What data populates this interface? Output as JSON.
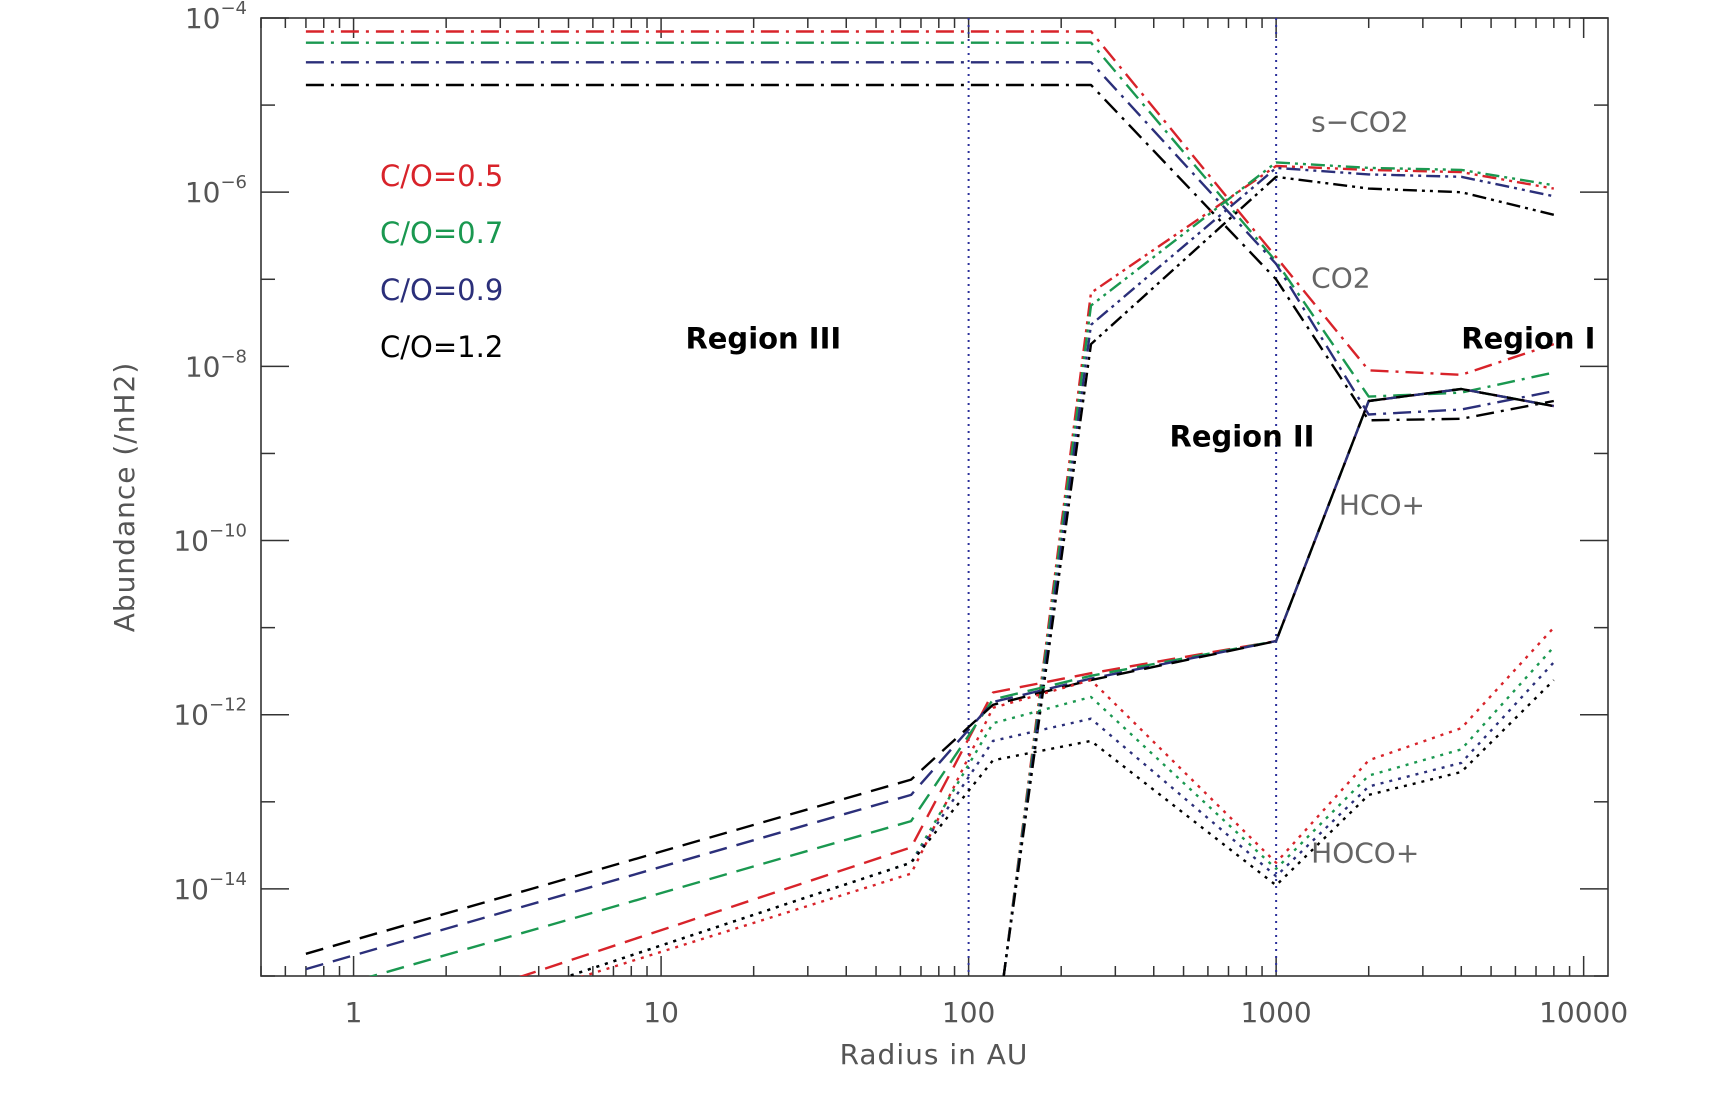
{
  "chart_data": {
    "type": "line",
    "xlabel": "Radius in AU",
    "ylabel": "Abundance (/nH2)",
    "xscale": "log",
    "yscale": "log",
    "xlim": [
      0.5,
      12000
    ],
    "ylim": [
      1e-15,
      0.0001
    ],
    "grid": false,
    "xticks": [
      {
        "value": 1,
        "label": "1"
      },
      {
        "value": 10,
        "label": "10"
      },
      {
        "value": 100,
        "label": "100"
      },
      {
        "value": 1000,
        "label": "1000"
      },
      {
        "value": 10000,
        "label": "10000"
      }
    ],
    "yticks": [
      {
        "value": 1e-14,
        "base": "10",
        "exp": "−14"
      },
      {
        "value": 1e-12,
        "base": "10",
        "exp": "−12"
      },
      {
        "value": 1e-10,
        "base": "10",
        "exp": "−10"
      },
      {
        "value": 1e-08,
        "base": "10",
        "exp": "−8"
      },
      {
        "value": 1e-06,
        "base": "10",
        "exp": "−6"
      },
      {
        "value": 0.0001,
        "base": "10",
        "exp": "−4"
      }
    ],
    "vlines": [
      100,
      1000
    ],
    "legend": {
      "placement": "upper-left",
      "entries": [
        {
          "label": "C/O=0.5",
          "color": "#d8232a"
        },
        {
          "label": "C/O=0.7",
          "color": "#1a9850"
        },
        {
          "label": "C/O=0.9",
          "color": "#2b2f7a"
        },
        {
          "label": "C/O=1.2",
          "color": "#000000"
        }
      ]
    },
    "annotations": [
      {
        "text": "s−CO2",
        "x": 1300,
        "y": 5e-06
      },
      {
        "text": "CO2",
        "x": 1300,
        "y": 8e-08
      },
      {
        "text": "HCO+",
        "x": 1600,
        "y": 2e-10
      },
      {
        "text": "HOCO+",
        "x": 1300,
        "y": 2e-14
      }
    ],
    "regions": [
      {
        "text": "Region III",
        "x": 12,
        "y": 1.6e-08
      },
      {
        "text": "Region II",
        "x": 450,
        "y": 1.2e-09
      },
      {
        "text": "Region I",
        "x": 4000,
        "y": 1.6e-08
      }
    ],
    "series": [
      {
        "name": "s-CO2",
        "co": "C/O=0.5",
        "style": "dashdot",
        "x": [
          0.7,
          250,
          1000,
          2000,
          4000,
          8000
        ],
        "y": [
          7e-05,
          7e-05,
          1.8e-07,
          9e-09,
          8e-09,
          1.8e-08
        ]
      },
      {
        "name": "s-CO2",
        "co": "C/O=0.7",
        "style": "dashdot",
        "x": [
          0.7,
          250,
          1000,
          2000,
          4000,
          8000
        ],
        "y": [
          5.2e-05,
          5.2e-05,
          1.6e-07,
          4.5e-09,
          5e-09,
          8.5e-09
        ]
      },
      {
        "name": "s-CO2",
        "co": "C/O=0.9",
        "style": "dashdot",
        "x": [
          0.7,
          250,
          1000,
          2000,
          4000,
          8000
        ],
        "y": [
          3.1e-05,
          3.1e-05,
          1.5e-07,
          2.8e-09,
          3.2e-09,
          5.2e-09
        ]
      },
      {
        "name": "s-CO2",
        "co": "C/O=1.2",
        "style": "dashdot",
        "x": [
          0.7,
          250,
          1000,
          2000,
          4000,
          8000
        ],
        "y": [
          1.7e-05,
          1.7e-05,
          1e-07,
          2.4e-09,
          2.5e-09,
          4e-09
        ]
      },
      {
        "name": "CO2",
        "co": "C/O=0.5",
        "style": "dashdotdot",
        "x": [
          130,
          250,
          1000,
          2000,
          4000,
          8000
        ],
        "y": [
          1e-15,
          7e-08,
          2e-06,
          1.8e-06,
          1.7e-06,
          1.1e-06
        ]
      },
      {
        "name": "CO2",
        "co": "C/O=0.7",
        "style": "dashdotdot",
        "x": [
          130,
          250,
          1000,
          2000,
          4000,
          8000
        ],
        "y": [
          1e-15,
          5e-08,
          2.2e-06,
          1.9e-06,
          1.8e-06,
          1.2e-06
        ]
      },
      {
        "name": "CO2",
        "co": "C/O=0.9",
        "style": "dashdotdot",
        "x": [
          130,
          250,
          1000,
          2000,
          4000,
          8000
        ],
        "y": [
          1e-15,
          3e-08,
          1.9e-06,
          1.6e-06,
          1.5e-06,
          9e-07
        ]
      },
      {
        "name": "CO2",
        "co": "C/O=1.2",
        "style": "dashdotdot",
        "x": [
          130,
          250,
          1000,
          2000,
          4000,
          8000
        ],
        "y": [
          1e-15,
          1.8e-08,
          1.5e-06,
          1.1e-06,
          1e-06,
          5.5e-07
        ]
      },
      {
        "name": "HCO+",
        "co": "C/O=0.5",
        "style": "dashed",
        "x": [
          0.7,
          65,
          120,
          250,
          1000,
          2000,
          4000,
          8000
        ],
        "y": [
          1.5e-16,
          3e-14,
          1.8e-12,
          3e-12,
          7e-12,
          4e-09,
          5.5e-09,
          3.5e-09
        ]
      },
      {
        "name": "HCO+",
        "co": "C/O=0.7",
        "style": "dashed",
        "x": [
          0.7,
          65,
          120,
          250,
          1000,
          2000,
          4000,
          8000
        ],
        "y": [
          6e-16,
          6e-14,
          1.5e-12,
          2.8e-12,
          7e-12,
          4e-09,
          5.5e-09,
          3.5e-09
        ]
      },
      {
        "name": "HCO+",
        "co": "C/O=0.9",
        "style": "dashed",
        "x": [
          0.7,
          65,
          120,
          250,
          1000,
          2000,
          4000,
          8000
        ],
        "y": [
          1.2e-15,
          1.2e-13,
          1.4e-12,
          2.6e-12,
          7e-12,
          4e-09,
          5.5e-09,
          3.5e-09
        ]
      },
      {
        "name": "HCO+",
        "co": "C/O=1.2",
        "style": "dashed",
        "x": [
          0.7,
          65,
          120,
          250,
          1000,
          2000,
          4000,
          8000
        ],
        "y": [
          1.8e-15,
          1.8e-13,
          1.3e-12,
          2.5e-12,
          7e-12,
          4e-09,
          5.5e-09,
          3.5e-09
        ]
      },
      {
        "name": "HOCO+",
        "co": "C/O=0.5",
        "style": "dotted",
        "x": [
          0.7,
          65,
          120,
          250,
          1000,
          2000,
          4000,
          8000
        ],
        "y": [
          1e-16,
          1.5e-14,
          1.2e-12,
          2.5e-12,
          2e-14,
          3e-13,
          7e-13,
          1e-11
        ]
      },
      {
        "name": "HOCO+",
        "co": "C/O=0.7",
        "style": "dotted",
        "x": [
          0.7,
          65,
          120,
          250,
          1000,
          2000,
          4000,
          8000
        ],
        "y": [
          1e-16,
          2e-14,
          8e-13,
          1.6e-12,
          1.7e-14,
          2e-13,
          4e-13,
          6e-12
        ]
      },
      {
        "name": "HOCO+",
        "co": "C/O=0.9",
        "style": "dotted",
        "x": [
          0.7,
          65,
          120,
          250,
          1000,
          2000,
          4000,
          8000
        ],
        "y": [
          1e-16,
          2e-14,
          5e-13,
          9e-13,
          1.4e-14,
          1.5e-13,
          2.8e-13,
          4e-12
        ]
      },
      {
        "name": "HOCO+",
        "co": "C/O=1.2",
        "style": "dotted",
        "x": [
          0.7,
          65,
          120,
          250,
          1000,
          2000,
          4000,
          8000
        ],
        "y": [
          1e-16,
          2e-14,
          3e-13,
          5e-13,
          1.1e-14,
          1.2e-13,
          2.2e-13,
          2.5e-12
        ]
      }
    ]
  }
}
